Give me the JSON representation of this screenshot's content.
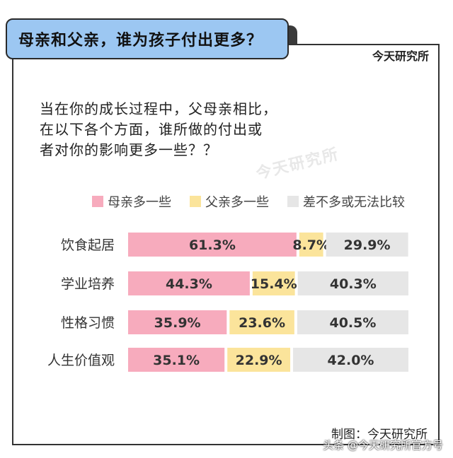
{
  "header": {
    "title": "母亲和父亲，谁为孩子付出更多？",
    "brand": "今天研究所"
  },
  "question": {
    "line1": "当在你的成长过程中，父母亲相比，",
    "line2": "在以下各个方面，谁所做的付出或",
    "line3": "者对你的影响更多一些？？"
  },
  "watermark": "今天研究所",
  "colors": {
    "mother": "#f7abbd",
    "father": "#fbe49b",
    "neither": "#e6e6e6",
    "title_bg": "#9cc7f2"
  },
  "chart_data": {
    "type": "bar",
    "orientation": "horizontal",
    "stacked": true,
    "categories": [
      "饮食起居",
      "学业培养",
      "性格习惯",
      "人生价值观"
    ],
    "series": [
      {
        "name": "母亲多一些",
        "values": [
          61.3,
          44.3,
          35.9,
          35.1
        ],
        "labels": [
          "61.3%",
          "44.3%",
          "35.9%",
          "35.1%"
        ]
      },
      {
        "name": "父亲多一些",
        "values": [
          8.7,
          15.4,
          23.6,
          22.9
        ],
        "labels": [
          "8.7%",
          "15.4%",
          "23.6%",
          "22.9%"
        ]
      },
      {
        "name": "差不多或无法比较",
        "values": [
          29.9,
          40.3,
          40.5,
          42.0
        ],
        "labels": [
          "29.9%",
          "40.3%",
          "40.5%",
          "42.0%"
        ]
      }
    ],
    "legend_position": "top",
    "grid": false
  },
  "footer": {
    "credit": "制图：今天研究所",
    "source": "头条 @今天研究所官方号"
  }
}
